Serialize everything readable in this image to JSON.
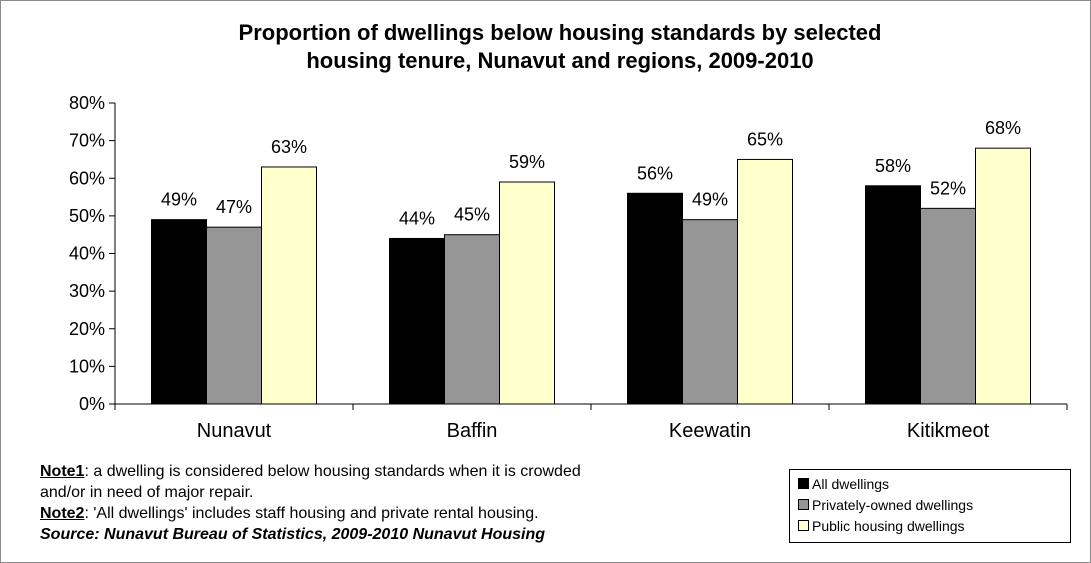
{
  "chart_data": {
    "type": "bar",
    "title": "Proportion of dwellings below housing standards by selected housing tenure, Nunavut and regions, 2009-2010",
    "title_lines": [
      "Proportion of dwellings below housing standards by selected",
      "housing tenure, Nunavut and regions, 2009-2010"
    ],
    "categories": [
      "Nunavut",
      "Baffin",
      "Keewatin",
      "Kitikmeot"
    ],
    "series": [
      {
        "name": "All dwellings",
        "values": [
          49,
          44,
          56,
          58
        ],
        "color": "#000000"
      },
      {
        "name": "Privately-owned dwellings",
        "values": [
          47,
          45,
          49,
          52
        ],
        "color": "#969696"
      },
      {
        "name": "Public housing dwellings",
        "values": [
          63,
          59,
          65,
          68
        ],
        "color": "#ffffcc"
      }
    ],
    "value_labels": [
      [
        "49%",
        "44%",
        "56%",
        "58%"
      ],
      [
        "47%",
        "45%",
        "49%",
        "52%"
      ],
      [
        "63%",
        "59%",
        "65%",
        "68%"
      ]
    ],
    "xlabel": "",
    "ylabel": "",
    "ylim": [
      0,
      80
    ],
    "yticks": [
      0,
      10,
      20,
      30,
      40,
      50,
      60,
      70,
      80
    ],
    "ytick_labels": [
      "0%",
      "10%",
      "20%",
      "30%",
      "40%",
      "50%",
      "60%",
      "70%",
      "80%"
    ],
    "grid": false,
    "legend_position": "bottom-right"
  },
  "notes": {
    "note1_label": "Note1",
    "note1_line1": ": a dwelling is considered below housing standards when it is crowded",
    "note1_line2": "and/or in need of major repair.",
    "note2_label": "Note2",
    "note2_text": ": 'All dwellings' includes staff housing and private rental housing.",
    "source": "Source: Nunavut Bureau of Statistics, 2009-2010 Nunavut Housing"
  }
}
